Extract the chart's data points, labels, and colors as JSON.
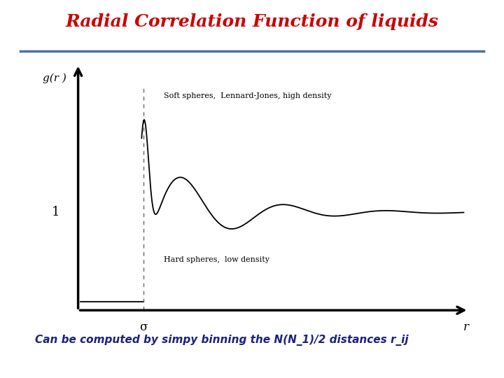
{
  "title": "Radial Correlation Function of liquids",
  "title_color": "#CC0000",
  "title_fontsize": 18,
  "subtitle_color": "#1a237e",
  "subtitle_text": "Can be computed by simpy binning the N(N_1)/2 distances r_ij",
  "subtitle_fontsize": 11,
  "ylabel": "g(r )",
  "xlabel_r": "r",
  "xlabel_sigma": "σ",
  "label_high": "Soft spheres,  Lennard-Jones, high density",
  "label_low": "Hard spheres,  low density",
  "y1_label": "1",
  "separator_line_color": "#4a6fa5",
  "background_color": "#ffffff",
  "footer_color": "#2255aa",
  "curve_color": "#000000"
}
